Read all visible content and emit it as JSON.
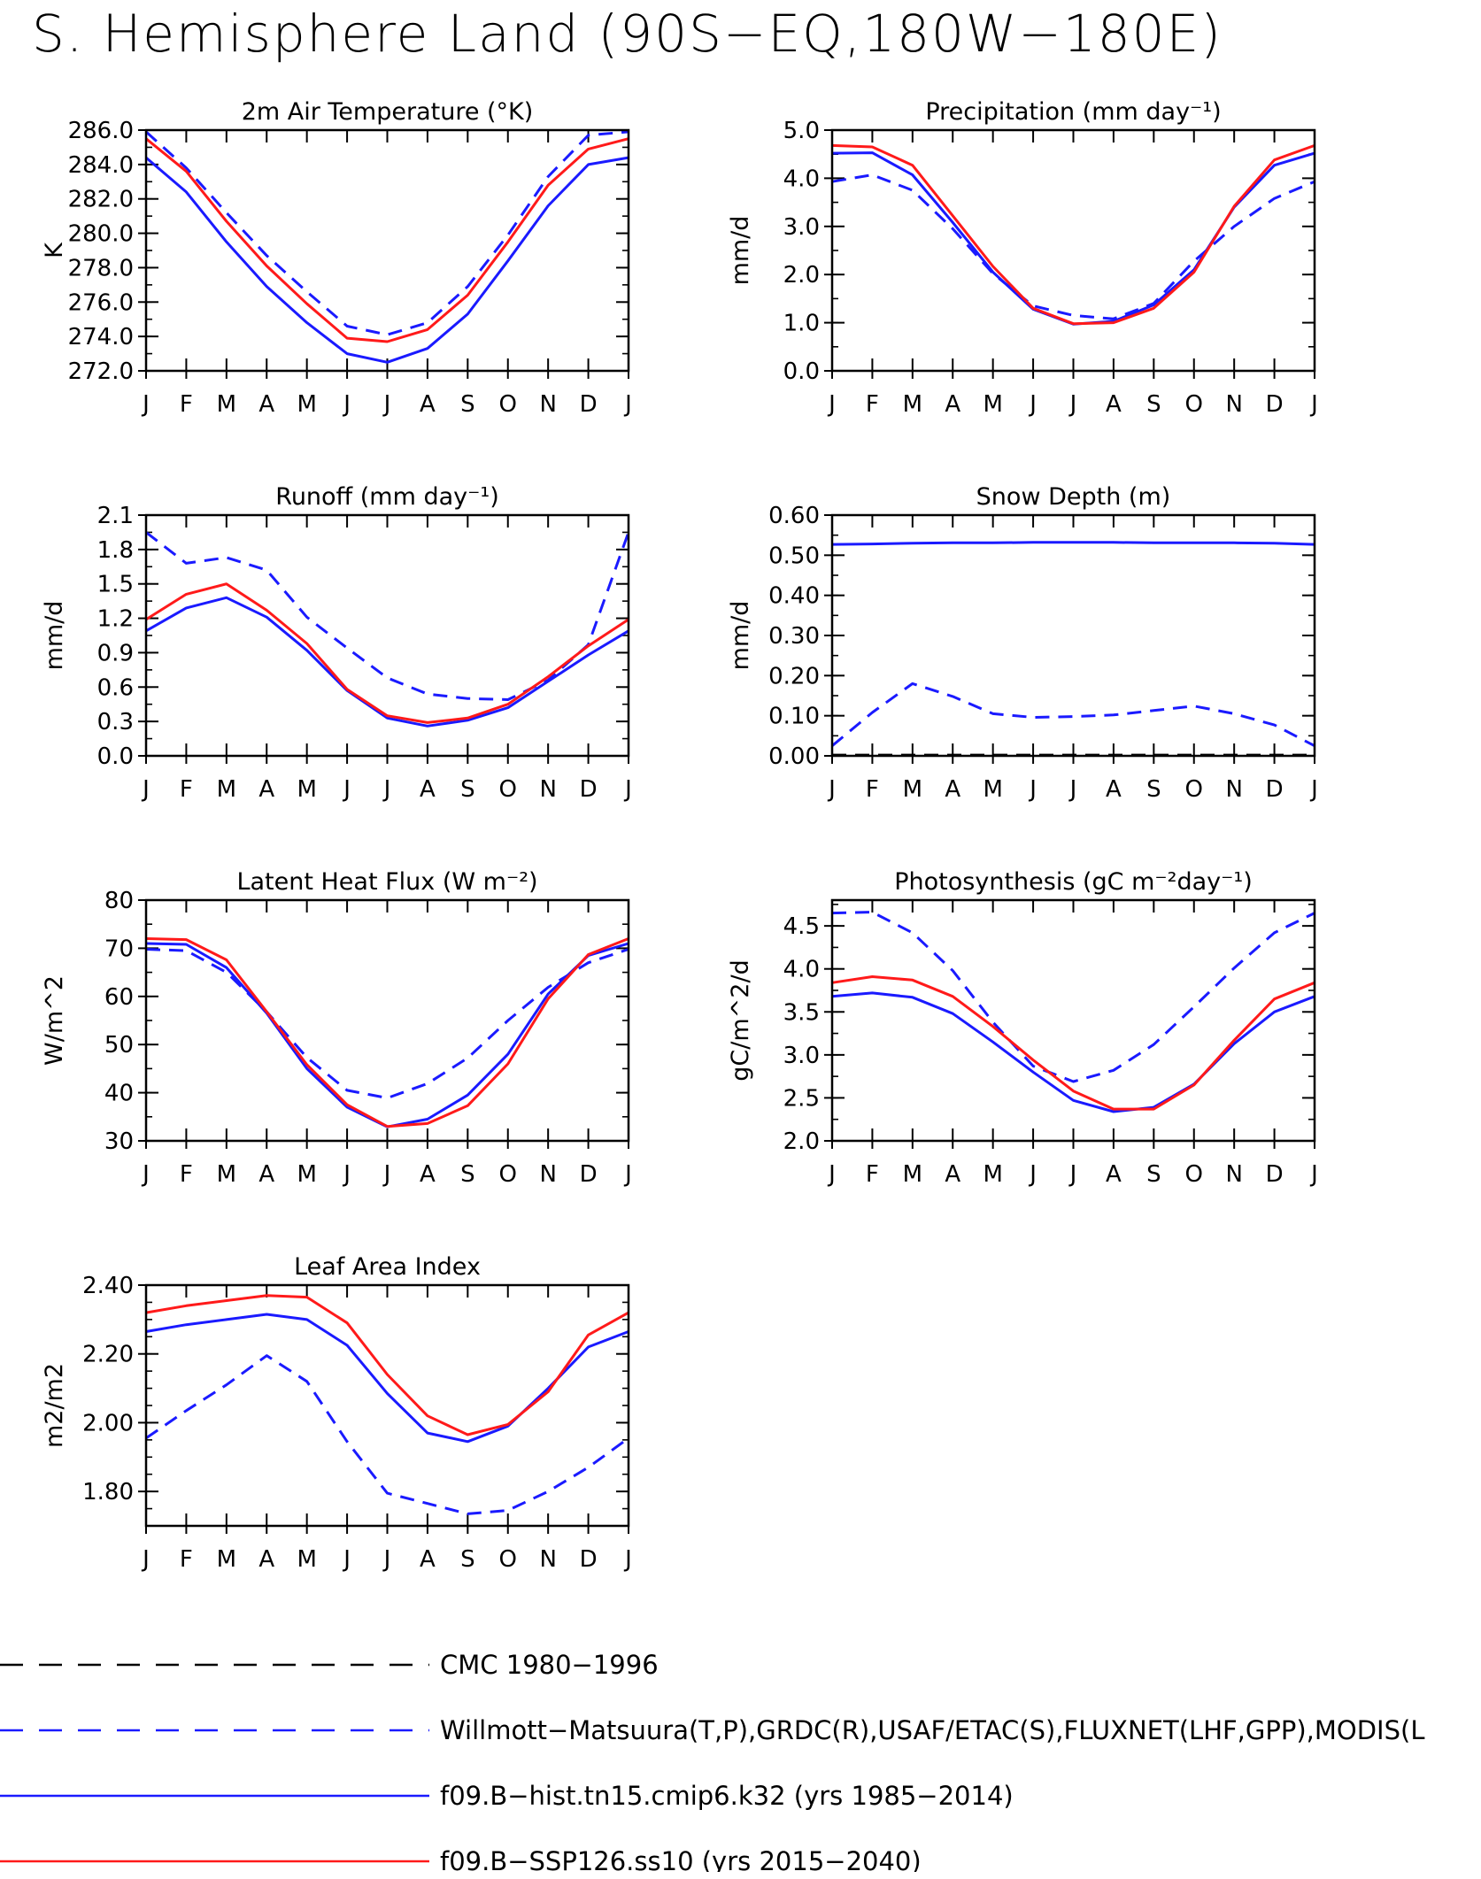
{
  "title": "S. Hemisphere Land (90S−EQ,180W−180E)",
  "months": [
    "J",
    "F",
    "M",
    "A",
    "M",
    "J",
    "J",
    "A",
    "S",
    "O",
    "N",
    "D",
    "J"
  ],
  "series_styles": [
    {
      "name": "CMC 1980−1996",
      "color": "#000000",
      "dash": "26,18"
    },
    {
      "name": "Willmott−Matsuura(T,P),GRDC(R),USAF/ETAC(S),FLUXNET(LHF,GPP),MODIS(L",
      "color": "#1a1aff",
      "dash": "26,18"
    },
    {
      "name": "f09.B−hist.tn15.cmip6.k32 (yrs 1985−2014)",
      "color": "#1a1aff",
      "dash": ""
    },
    {
      "name": "f09.B−SSP126.ss10 (yrs 2015−2040)",
      "color": "#ff1a1a",
      "dash": ""
    }
  ],
  "chart_data": [
    {
      "type": "line",
      "title": "2m Air Temperature (°K)",
      "ylabel": "K",
      "ylim": [
        272.0,
        286.0
      ],
      "yticks": [
        "272.0",
        "274.0",
        "276.0",
        "278.0",
        "280.0",
        "282.0",
        "284.0",
        "286.0"
      ],
      "minor_step": 1.0,
      "series": [
        {
          "style": 1,
          "values": [
            285.9,
            283.8,
            281.2,
            278.7,
            276.6,
            274.6,
            274.1,
            274.8,
            276.9,
            279.9,
            283.3,
            285.7,
            285.9
          ]
        },
        {
          "style": 2,
          "values": [
            284.4,
            282.4,
            279.5,
            276.9,
            274.8,
            273.0,
            272.5,
            273.3,
            275.3,
            278.4,
            281.6,
            284.0,
            284.4
          ]
        },
        {
          "style": 3,
          "values": [
            285.5,
            283.6,
            280.7,
            278.1,
            275.9,
            273.9,
            273.7,
            274.4,
            276.4,
            279.5,
            282.8,
            284.9,
            285.5
          ]
        }
      ]
    },
    {
      "type": "line",
      "title": "Precipitation (mm day⁻¹)",
      "ylabel": "mm/d",
      "ylim": [
        0.0,
        5.0
      ],
      "yticks": [
        "0.0",
        "1.0",
        "2.0",
        "3.0",
        "4.0",
        "5.0"
      ],
      "minor_step": 0.5,
      "series": [
        {
          "style": 1,
          "values": [
            3.93,
            4.07,
            3.75,
            2.95,
            2.02,
            1.35,
            1.15,
            1.08,
            1.4,
            2.28,
            3.0,
            3.58,
            3.93
          ]
        },
        {
          "style": 2,
          "values": [
            4.52,
            4.53,
            4.07,
            3.08,
            2.05,
            1.28,
            0.97,
            1.03,
            1.37,
            2.1,
            3.4,
            4.27,
            4.52
          ]
        },
        {
          "style": 3,
          "values": [
            4.68,
            4.65,
            4.27,
            3.22,
            2.17,
            1.3,
            0.98,
            1.0,
            1.3,
            2.05,
            3.42,
            4.38,
            4.68
          ]
        }
      ]
    },
    {
      "type": "line",
      "title": "Runoff (mm day⁻¹)",
      "ylabel": "mm/d",
      "ylim": [
        0.0,
        2.1
      ],
      "yticks": [
        "0.0",
        "0.3",
        "0.6",
        "0.9",
        "1.2",
        "1.5",
        "1.8",
        "2.1"
      ],
      "minor_step": 0.15,
      "series": [
        {
          "style": 1,
          "values": [
            1.95,
            1.68,
            1.73,
            1.62,
            1.21,
            0.94,
            0.68,
            0.54,
            0.5,
            0.49,
            0.66,
            0.97,
            1.95
          ]
        },
        {
          "style": 2,
          "values": [
            1.09,
            1.29,
            1.38,
            1.21,
            0.92,
            0.57,
            0.33,
            0.26,
            0.31,
            0.42,
            0.65,
            0.88,
            1.09
          ]
        },
        {
          "style": 3,
          "values": [
            1.19,
            1.41,
            1.5,
            1.27,
            0.98,
            0.58,
            0.35,
            0.29,
            0.33,
            0.45,
            0.69,
            0.96,
            1.19
          ]
        }
      ]
    },
    {
      "type": "line",
      "title": "Snow Depth (m)",
      "ylabel": "mm/d",
      "ylim": [
        0.0,
        0.6
      ],
      "yticks": [
        "0.00",
        "0.10",
        "0.20",
        "0.30",
        "0.40",
        "0.50",
        "0.60"
      ],
      "minor_step": 0.05,
      "series": [
        {
          "style": 1,
          "values": [
            0.025,
            0.108,
            0.18,
            0.148,
            0.105,
            0.096,
            0.098,
            0.102,
            0.113,
            0.124,
            0.105,
            0.077,
            0.025
          ]
        },
        {
          "style": 2,
          "values": [
            0.527,
            0.528,
            0.53,
            0.531,
            0.531,
            0.532,
            0.532,
            0.532,
            0.531,
            0.531,
            0.531,
            0.53,
            0.527
          ]
        },
        {
          "style": 0,
          "values": [
            0.002,
            0.002,
            0.002,
            0.002,
            0.002,
            0.002,
            0.002,
            0.002,
            0.002,
            0.002,
            0.002,
            0.002,
            0.002
          ]
        }
      ]
    },
    {
      "type": "line",
      "title": "Latent Heat Flux (W m⁻²)",
      "ylabel": "W/m^2",
      "ylim": [
        30,
        80
      ],
      "yticks": [
        "30",
        "40",
        "50",
        "60",
        "70",
        "80"
      ],
      "minor_step": 5,
      "series": [
        {
          "style": 1,
          "values": [
            69.8,
            69.5,
            65.0,
            56.8,
            47.3,
            40.5,
            38.9,
            41.9,
            47.2,
            55.0,
            61.9,
            67.0,
            69.8
          ]
        },
        {
          "style": 2,
          "values": [
            71.0,
            70.8,
            66.0,
            56.5,
            45.0,
            37.0,
            32.9,
            34.5,
            39.5,
            48.0,
            60.5,
            68.5,
            71.0
          ]
        },
        {
          "style": 3,
          "values": [
            72.0,
            71.8,
            67.6,
            56.8,
            45.8,
            37.5,
            33.0,
            33.6,
            37.3,
            46.0,
            59.5,
            68.7,
            72.0
          ]
        }
      ]
    },
    {
      "type": "line",
      "title": "Photosynthesis (gC m⁻²day⁻¹)",
      "ylabel": "gC/m^2/d",
      "ylim": [
        2.0,
        4.8
      ],
      "yticks": [
        "2.0",
        "2.5",
        "3.0",
        "3.5",
        "4.0",
        "4.5"
      ],
      "minor_step": 0.25,
      "series": [
        {
          "style": 1,
          "values": [
            4.65,
            4.66,
            4.42,
            3.98,
            3.38,
            2.87,
            2.69,
            2.82,
            3.12,
            3.56,
            4.01,
            4.42,
            4.65
          ]
        },
        {
          "style": 2,
          "values": [
            3.68,
            3.72,
            3.67,
            3.48,
            3.15,
            2.8,
            2.47,
            2.34,
            2.39,
            2.66,
            3.13,
            3.5,
            3.68
          ]
        },
        {
          "style": 3,
          "values": [
            3.84,
            3.91,
            3.87,
            3.68,
            3.33,
            2.94,
            2.58,
            2.37,
            2.37,
            2.65,
            3.17,
            3.65,
            3.84
          ]
        }
      ]
    },
    {
      "type": "line",
      "title": "Leaf Area Index",
      "ylabel": "m2/m2",
      "ylim": [
        1.7,
        2.4
      ],
      "yticks": [
        "1.80",
        "2.00",
        "2.20",
        "2.40"
      ],
      "minor_step": 0.05,
      "series": [
        {
          "style": 1,
          "values": [
            1.955,
            2.035,
            2.11,
            2.195,
            2.12,
            1.945,
            1.795,
            1.765,
            1.735,
            1.745,
            1.8,
            1.87,
            1.955
          ]
        },
        {
          "style": 2,
          "values": [
            2.265,
            2.285,
            2.3,
            2.315,
            2.3,
            2.225,
            2.085,
            1.97,
            1.945,
            1.99,
            2.1,
            2.22,
            2.265
          ]
        },
        {
          "style": 3,
          "values": [
            2.32,
            2.34,
            2.355,
            2.37,
            2.365,
            2.29,
            2.14,
            2.02,
            1.965,
            1.995,
            2.09,
            2.255,
            2.32
          ]
        }
      ]
    }
  ]
}
